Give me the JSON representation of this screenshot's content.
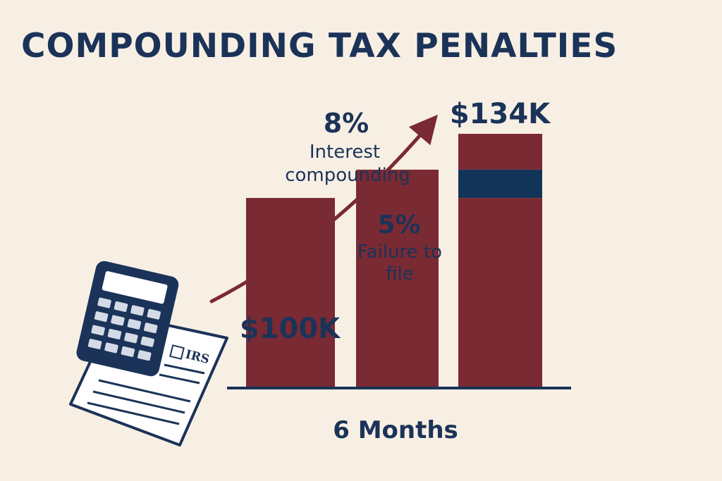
{
  "title": "COMPOUNDING TAX PENALTIES",
  "colors": {
    "background": "#f8efe4",
    "navy": "#1b3358",
    "maroon": "#7a2a33",
    "bar_navy": "#133459"
  },
  "chart_data": {
    "type": "bar",
    "title": "COMPOUNDING TAX PENALTIES",
    "xlabel": "6 Months",
    "ylabel": "",
    "categories": [
      "",
      "",
      ""
    ],
    "values": [
      100,
      115,
      134
    ],
    "value_labels": [
      "$100K",
      "",
      "$134K"
    ],
    "stacked_segments": [
      {
        "bar": 2,
        "from": 115,
        "to": 134,
        "color": "#7a2a33"
      },
      {
        "bar": 2,
        "from": 100,
        "to": 115,
        "color": "#133459"
      },
      {
        "bar": 2,
        "from": 0,
        "to": 100,
        "color": "#7a2a33"
      }
    ],
    "annotations": [
      {
        "pct": "8%",
        "text_lines": [
          "Interest",
          "compounding"
        ]
      },
      {
        "pct": "5%",
        "text_lines": [
          "Failure to",
          "file"
        ]
      }
    ],
    "units": "$K",
    "grid": false,
    "legend": "none"
  },
  "illustration": {
    "icons": [
      "calculator-icon",
      "tax-form-icon"
    ],
    "form_label": "IRS"
  }
}
